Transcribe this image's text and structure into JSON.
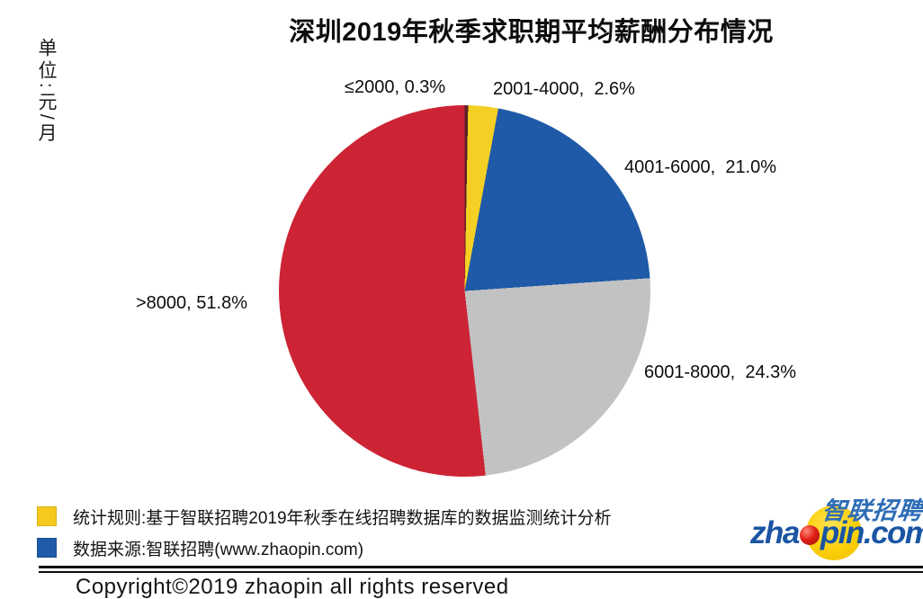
{
  "title": "深圳2019年秋季求职期平均薪酬分布情况",
  "unit_label": "单位:元/月",
  "chart_data": {
    "type": "pie",
    "title": "深圳2019年秋季求职期平均薪酬分布情况",
    "unit": "元/月",
    "categories": [
      "≤2000",
      "2001-4000",
      "4001-6000",
      "6001-8000",
      ">8000"
    ],
    "values": [
      0.3,
      2.6,
      21.0,
      24.3,
      51.8
    ],
    "colors": [
      "#5d2027",
      "#f4cf24",
      "#1e5aa7",
      "#c2c2c3",
      "#cc2434"
    ],
    "labels": [
      "≤2000, 0.3%",
      "2001-4000,  2.6%",
      "4001-6000,  21.0%",
      "6001-8000,  24.3%",
      ">8000, 51.8%"
    ],
    "start_angle_deg": 0,
    "direction": "clockwise",
    "legend_position": "outside-labels"
  },
  "legend": {
    "items": [
      {
        "label": "统计规则:基于智联招聘2019年秋季在线招聘数据库的数据监测统计分析",
        "color": "#f5c91e"
      },
      {
        "label": "数据来源:智联招聘(www.zhaopin.com)",
        "color": "#1e5ba8"
      }
    ]
  },
  "footer": {
    "copyright": "Copyright©2019 zhaopin all rights reserved"
  },
  "logo": {
    "cn": "智联招聘",
    "en_pre": "zha",
    "en_post": "pin.com",
    "full": "zhaopin.com"
  }
}
